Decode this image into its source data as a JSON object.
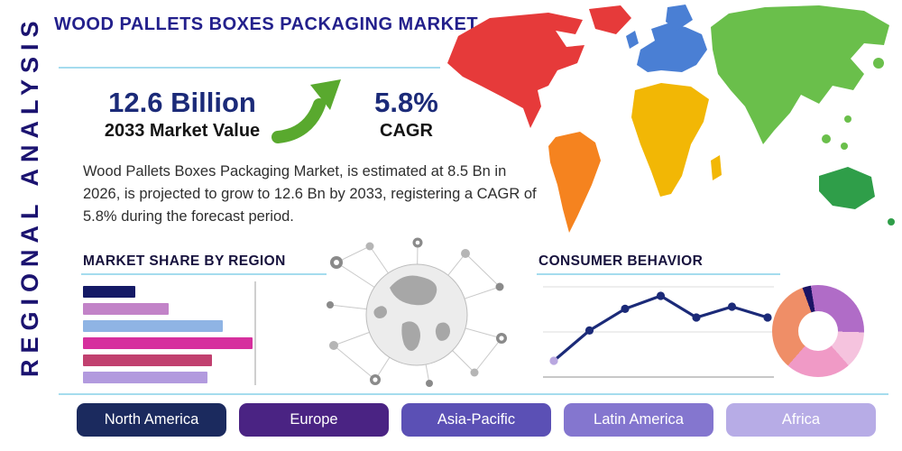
{
  "page": {
    "title": "WOOD PALLETS BOXES PACKAGING MARKET",
    "side_label": "REGIONAL ANALYSIS"
  },
  "stats": {
    "market_value": "12.6 Billion",
    "market_value_label": "2033 Market Value",
    "cagr_value": "5.8%",
    "cagr_label": "CAGR",
    "arrow_color": "#59a92e",
    "description": "Wood Pallets Boxes Packaging Market, is estimated at 8.5 Bn in 2026, is projected to grow to 12.6 Bn by 2033, registering a CAGR of 5.8% during the forecast period."
  },
  "sections": {
    "market_share_title": "MARKET SHARE BY REGION",
    "consumer_behavior_title": "CONSUMER BEHAVIOR"
  },
  "theme": {
    "accent_navy": "#1b2a78",
    "divider_blue": "#a5dcee",
    "title_blue": "#23208c"
  },
  "map": {
    "colors": {
      "north_america": "#e63a3a",
      "south_america": "#f5831f",
      "europe": "#4a7fd4",
      "africa": "#f2b705",
      "asia": "#6abf4b",
      "australia": "#2f9e49"
    }
  },
  "region_buttons": [
    {
      "label": "North America",
      "color": "#1b2a5e"
    },
    {
      "label": "Europe",
      "color": "#4a2383"
    },
    {
      "label": "Asia-Pacific",
      "color": "#5b50b5"
    },
    {
      "label": "Latin America",
      "color": "#8476cf"
    },
    {
      "label": "Africa",
      "color": "#b7ace6"
    }
  ],
  "chart_data": [
    {
      "type": "bar",
      "orientation": "horizontal",
      "title": "MARKET SHARE BY REGION",
      "values": [
        23,
        38,
        62,
        75,
        57,
        55
      ],
      "colors": [
        "#141a66",
        "#c283c8",
        "#8fb4e4",
        "#d6309e",
        "#c1406f",
        "#b29ade"
      ],
      "xlim": [
        0,
        100
      ],
      "gridline_x": 76,
      "grid": "single-vertical",
      "legend": "none"
    },
    {
      "type": "line",
      "title": "CONSUMER BEHAVIOR",
      "x": [
        1,
        2,
        3,
        4,
        5,
        6,
        7
      ],
      "values": [
        1.5,
        4.3,
        6.3,
        7.5,
        5.5,
        6.5,
        5.5
      ],
      "ylim": [
        0,
        8
      ],
      "line_color": "#1b2a78",
      "marker_color": "#1b2a78",
      "first_marker_color": "#b9a7e0",
      "grid": "horizontal",
      "legend": "none"
    },
    {
      "type": "pie",
      "subtype": "donut",
      "values": [
        3,
        28,
        13,
        23,
        33
      ],
      "colors": [
        "#1b1464",
        "#b06cc7",
        "#f5c3de",
        "#f09ac6",
        "#ef8e67"
      ],
      "start_angle_deg": -20,
      "legend": "none"
    }
  ]
}
